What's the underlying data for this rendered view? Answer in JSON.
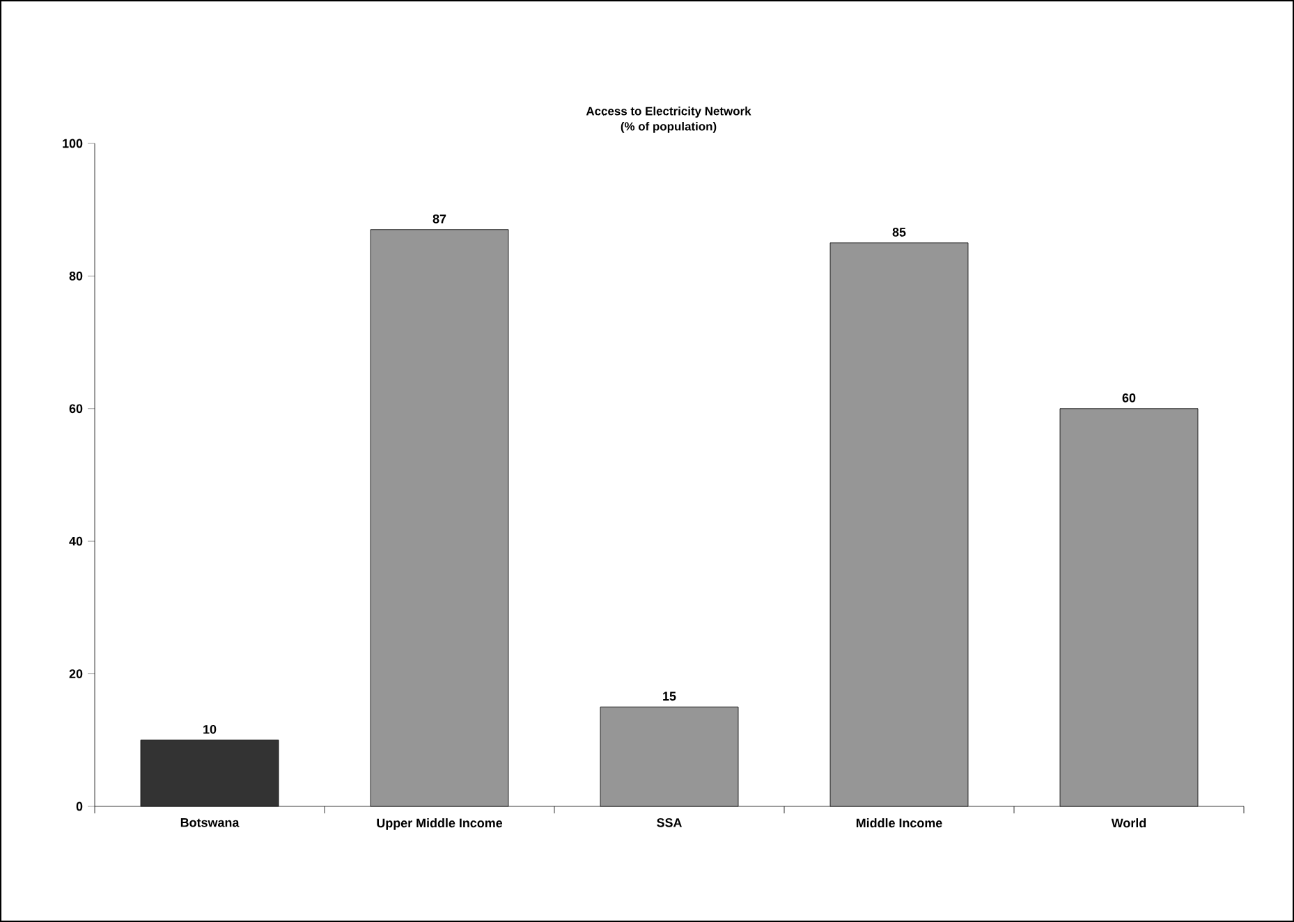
{
  "chart_data": {
    "type": "bar",
    "title": "Access to Electricity Network",
    "subtitle": "(% of population)",
    "categories": [
      "Botswana",
      "Upper Middle Income",
      "SSA",
      "Middle Income",
      "World"
    ],
    "values": [
      10,
      87,
      15,
      85,
      60
    ],
    "colors": [
      "#333333",
      "#969696",
      "#969696",
      "#969696",
      "#969696"
    ],
    "ylim": [
      0,
      100
    ],
    "yticks": [
      0,
      20,
      40,
      60,
      80,
      100
    ],
    "data_labels": true
  }
}
